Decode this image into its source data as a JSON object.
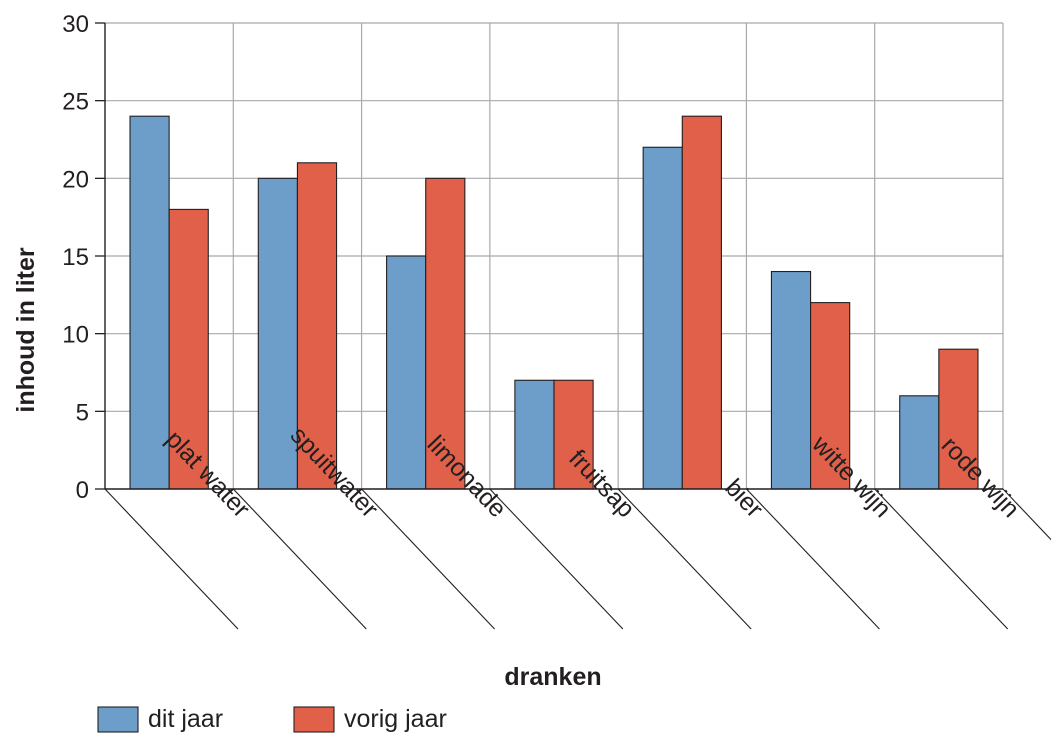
{
  "chart_data": {
    "type": "bar",
    "title": "",
    "xlabel": "dranken",
    "ylabel": "inhoud in liter",
    "ylim": [
      0,
      30
    ],
    "yticks": [
      0,
      5,
      10,
      15,
      20,
      25,
      30
    ],
    "grid": true,
    "legend_position": "bottom-left",
    "categories": [
      "plat water",
      "spuitwater",
      "limonade",
      "fruitsap",
      "bier",
      "witte wijn",
      "rode wijn"
    ],
    "series": [
      {
        "name": "dit jaar",
        "color": "#6d9dc9",
        "values": [
          24,
          20,
          15,
          7,
          22,
          14,
          6
        ]
      },
      {
        "name": "vorig jaar",
        "color": "#e0604a",
        "values": [
          18,
          21,
          20,
          7,
          24,
          12,
          9
        ]
      }
    ]
  }
}
